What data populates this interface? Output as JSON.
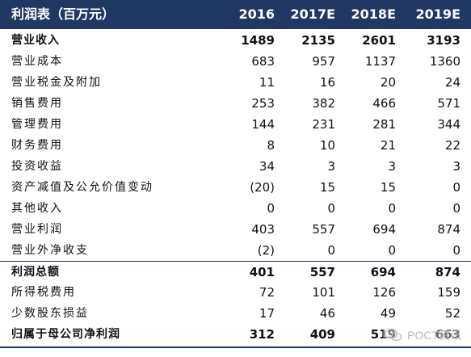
{
  "table": {
    "header": {
      "label": "利润表（百万元）",
      "years": [
        "2016",
        "2017E",
        "2018E",
        "2019E"
      ]
    },
    "rows": [
      {
        "label": "营业收入",
        "values": [
          "1489",
          "2135",
          "2601",
          "3193"
        ],
        "bold": true
      },
      {
        "label": "营业成本",
        "values": [
          "683",
          "957",
          "1137",
          "1360"
        ],
        "bold": false
      },
      {
        "label": "营业税金及附加",
        "values": [
          "11",
          "16",
          "20",
          "24"
        ],
        "bold": false
      },
      {
        "label": "销售费用",
        "values": [
          "253",
          "382",
          "466",
          "571"
        ],
        "bold": false
      },
      {
        "label": "管理费用",
        "values": [
          "144",
          "231",
          "281",
          "344"
        ],
        "bold": false
      },
      {
        "label": "财务费用",
        "values": [
          "8",
          "10",
          "21",
          "22"
        ],
        "bold": false
      },
      {
        "label": "投资收益",
        "values": [
          "34",
          "3",
          "3",
          "3"
        ],
        "bold": false
      },
      {
        "label": "资产减值及公允价值变动",
        "values": [
          "(20)",
          "15",
          "15",
          "0"
        ],
        "bold": false
      },
      {
        "label": "其他收入",
        "values": [
          "0",
          "0",
          "0",
          "0"
        ],
        "bold": false
      },
      {
        "label": "营业利润",
        "values": [
          "403",
          "557",
          "694",
          "874"
        ],
        "bold": false
      },
      {
        "label": "营业外净收支",
        "values": [
          "(2)",
          "0",
          "0",
          "0"
        ],
        "bold": false
      },
      {
        "label": "利润总额",
        "values": [
          "401",
          "557",
          "694",
          "874"
        ],
        "bold": true
      },
      {
        "label": "所得税费用",
        "values": [
          "72",
          "101",
          "126",
          "159"
        ],
        "bold": false
      },
      {
        "label": "少数股东损益",
        "values": [
          "17",
          "46",
          "49",
          "52"
        ],
        "bold": false
      },
      {
        "label": "归属于母公司净利润",
        "values": [
          "312",
          "409",
          "519",
          "663"
        ],
        "bold": true
      }
    ]
  },
  "watermark": {
    "text": "POCT资讯",
    "icon": "wechat-icon"
  },
  "colors": {
    "header_bg": "#1f3864",
    "header_text": "#ffffff",
    "text": "#111111"
  }
}
